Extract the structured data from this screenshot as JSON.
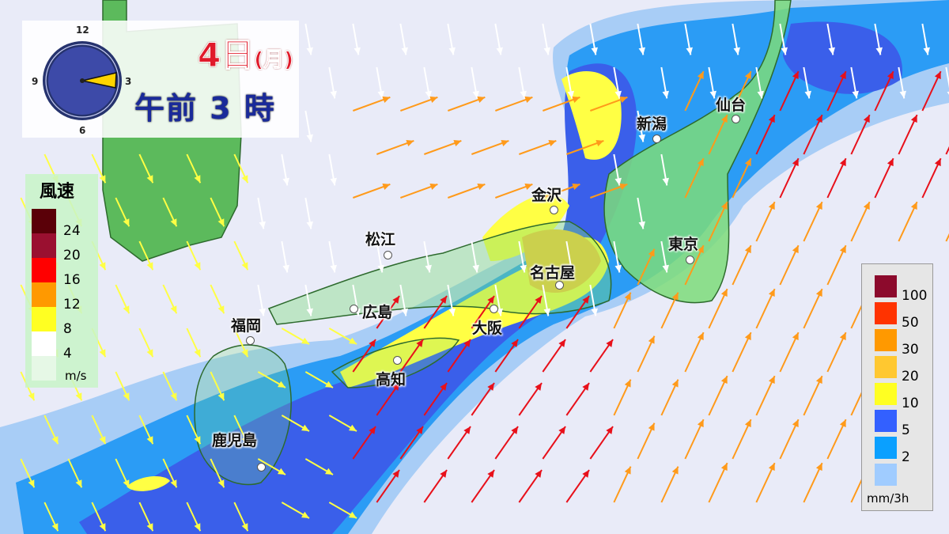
{
  "header": {
    "date": "4日",
    "weekday": "(月)",
    "time": "午前 3 時",
    "clock": {
      "labels": [
        "12",
        "3",
        "6",
        "9"
      ],
      "hour": 3
    }
  },
  "wind_legend": {
    "title": "風速",
    "unit": "m/s",
    "levels": [
      {
        "label": "24",
        "color": "#5a0008"
      },
      {
        "label": "20",
        "color": "#9a1030"
      },
      {
        "label": "16",
        "color": "#ff0000"
      },
      {
        "label": "12",
        "color": "#ff9900"
      },
      {
        "label": "8",
        "color": "#ffff22"
      },
      {
        "label": "4",
        "color": "#ffffff"
      },
      {
        "label": "",
        "color": "#e6f8e6"
      }
    ]
  },
  "rain_legend": {
    "unit": "mm/3h",
    "levels": [
      {
        "label": "100",
        "color": "#8c0a2c"
      },
      {
        "label": "50",
        "color": "#ff3300"
      },
      {
        "label": "30",
        "color": "#ff9900"
      },
      {
        "label": "20",
        "color": "#ffc830"
      },
      {
        "label": "10",
        "color": "#ffff22"
      },
      {
        "label": "5",
        "color": "#3360ff"
      },
      {
        "label": "2",
        "color": "#0aa0ff"
      },
      {
        "label": "",
        "color": "#a0ccff"
      }
    ]
  },
  "cities": [
    "仙台",
    "新潟",
    "金沢",
    "松江",
    "東京",
    "名古屋",
    "広島",
    "大阪",
    "福岡",
    "高知",
    "鹿児島"
  ]
}
